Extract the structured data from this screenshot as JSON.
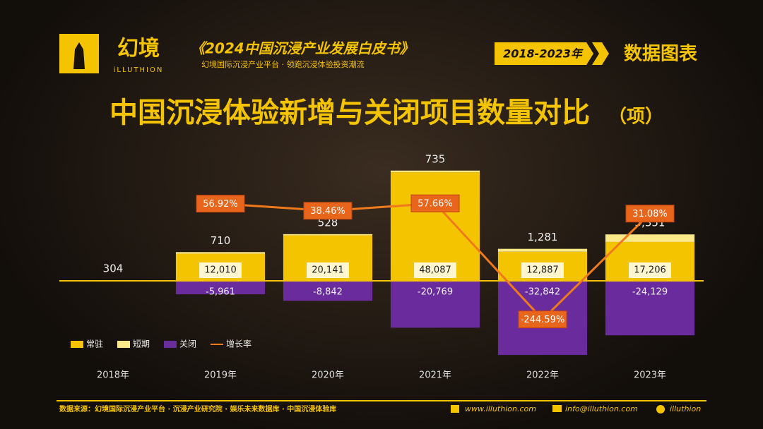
{
  "header": {
    "logo": "幻境",
    "logo_sub": "iLLUTHION",
    "book": "《2024中国沉浸产业发展白皮书》",
    "tagline": "幻境国际沉浸产业平台 · 领跑沉浸体验投资潮流",
    "years": "2018-2023年",
    "section": "数据图表"
  },
  "chart_data": {
    "type": "bar",
    "title": "中国沉浸体验新增与关闭项目数量对比",
    "unit": "（项）",
    "categories": [
      "2018年",
      "2019年",
      "2020年",
      "2021年",
      "2022年",
      "2023年"
    ],
    "series": [
      {
        "name": "常驻",
        "color": "#f5c400",
        "values": [
          null,
          12010,
          20141,
          48087,
          12887,
          17206
        ],
        "value_labels": [
          null,
          "12,010",
          "20,141",
          "48,087",
          "12,887",
          "17,206"
        ]
      },
      {
        "name": "短期",
        "color": "#fbe98a",
        "values": [
          304,
          710,
          528,
          735,
          1281,
          3351
        ],
        "value_labels": [
          "304",
          "710",
          "528",
          "735",
          "1,281",
          "3,351"
        ]
      },
      {
        "name": "关闭",
        "color": "#6a2c9c",
        "values": [
          null,
          -5961,
          -8842,
          -20769,
          -32842,
          -24129
        ],
        "value_labels": [
          null,
          "-5,961",
          "-8,842",
          "-20,769",
          "-32,842",
          "-24,129"
        ]
      },
      {
        "name": "增长率",
        "color": "#ee7a1c",
        "axis": "y2",
        "values": [
          null,
          56.92,
          38.46,
          57.66,
          -244.59,
          31.08
        ],
        "value_labels": [
          null,
          "56.92%",
          "38.46%",
          "57.66%",
          "-244.59%",
          "31.08%"
        ]
      }
    ],
    "ylim": [
      -35000,
      50000
    ],
    "y2lim": [
      -350,
      150
    ]
  },
  "footer": {
    "source": "数据来源：幻境国际沉浸产业平台 · 沉浸产业研究院 · 娱乐未来数据库 · 中国沉浸体验库",
    "web": "www.illuthion.com",
    "email": "info@illuthion.com",
    "wechat": "illuthion"
  }
}
